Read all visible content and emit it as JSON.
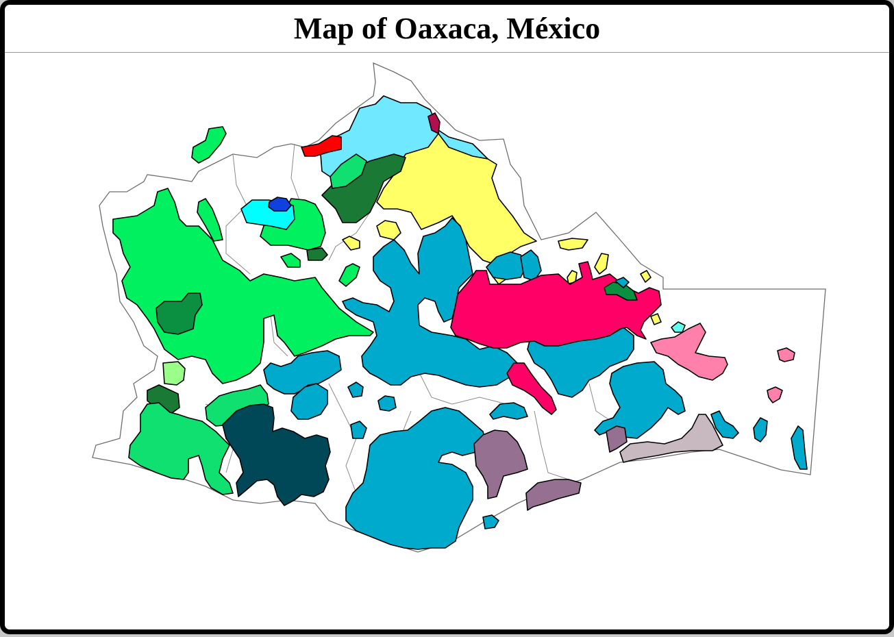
{
  "title": "Map of Oaxaca, México",
  "colors": {
    "frame": "#000000",
    "background": "#ffffff",
    "state_outline": "#6e6e6e",
    "bright_green": "#00f060",
    "medium_green": "#10e070",
    "dark_green": "#1a7a35",
    "forest_green": "#0a9040",
    "light_green": "#99ff88",
    "teal_blue": "#00aacc",
    "dark_teal": "#004858",
    "sky_blue": "#70e8ff",
    "cyan": "#00ffff",
    "blue": "#1040e0",
    "yellow": "#ffff66",
    "magenta": "#ff0066",
    "pink": "#ff80aa",
    "crimson": "#b01050",
    "red": "#ff0000",
    "mauve": "#957090",
    "light_mauve": "#c8b8c0",
    "aqua": "#60ffee"
  }
}
